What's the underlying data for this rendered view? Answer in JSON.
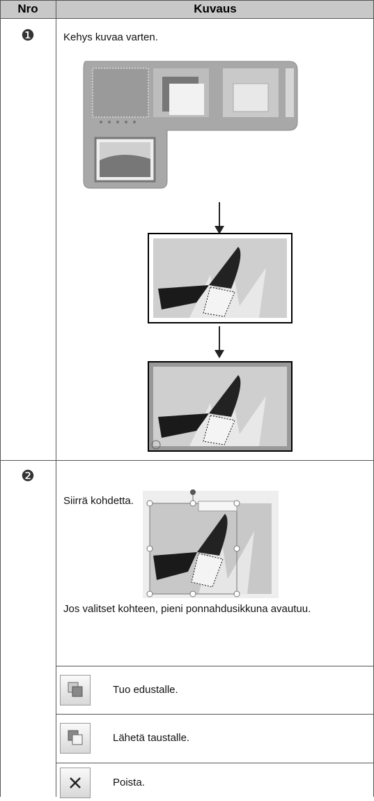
{
  "table": {
    "header": [
      "Nro",
      "Kuvaus"
    ],
    "rows": [
      {
        "number": "❶",
        "text": "Kehys kuvaa varten."
      },
      {
        "number": "❷",
        "text": "Siirrä kohdetta.",
        "note": "Jos valitset kohteen, pieni ponnahdusikkuna avautuu.",
        "actions": [
          "Tuo edustalle.",
          "Lähetä taustalle.",
          "Poista."
        ]
      }
    ]
  }
}
